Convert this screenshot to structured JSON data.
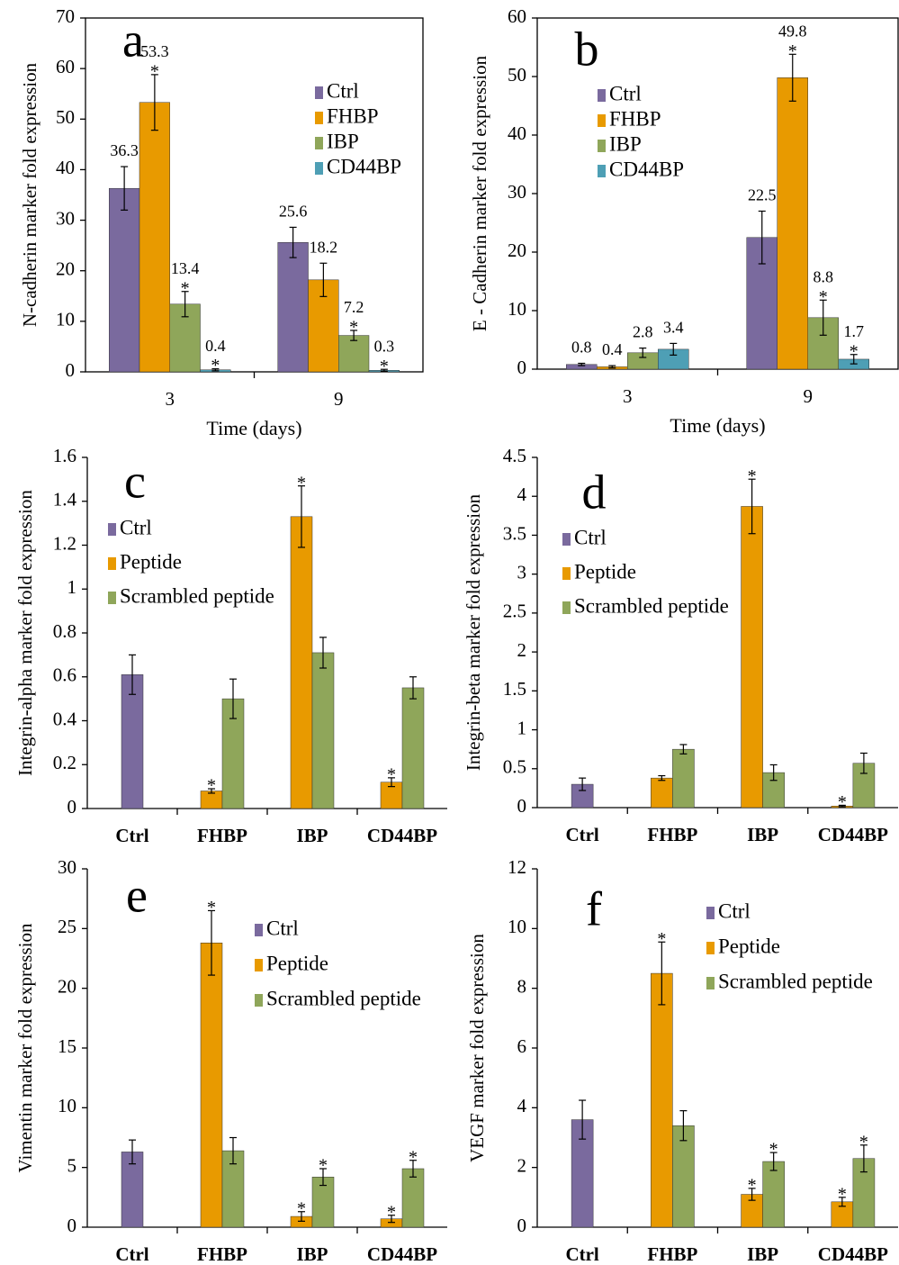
{
  "chart_data": [
    {
      "type": "bar",
      "label": "a",
      "y_label": "N-cadherin marker fold expression",
      "x_label": "Time (days)",
      "categories": [
        "3",
        "9"
      ],
      "ylim": [
        0,
        70
      ],
      "yticks": [
        0,
        10,
        20,
        30,
        40,
        50,
        60,
        70
      ],
      "frame": true,
      "show_value_labels": true,
      "legend": "upper right",
      "series": [
        {
          "name": "Ctrl",
          "color": "#7a6a9e",
          "values": [
            36.3,
            25.6
          ],
          "errors": [
            4.3,
            3
          ],
          "significance": [
            null,
            null
          ]
        },
        {
          "name": "FHBP",
          "color": "#e89a00",
          "values": [
            53.3,
            18.2
          ],
          "errors": [
            5.5,
            3.3
          ],
          "significance": [
            "*",
            null
          ]
        },
        {
          "name": "IBP",
          "color": "#8fa65a",
          "values": [
            13.4,
            7.2
          ],
          "errors": [
            2.5,
            1
          ],
          "significance": [
            "*",
            "*"
          ]
        },
        {
          "name": "CD44BP",
          "color": "#4e9fb5",
          "values": [
            0.4,
            0.3
          ],
          "errors": [
            0.2,
            0.2
          ],
          "significance": [
            "*",
            "*"
          ]
        }
      ]
    },
    {
      "type": "bar",
      "label": "b",
      "y_label": "E - Cadherin marker fold expression",
      "x_label": "Time (days)",
      "categories": [
        "3",
        "9"
      ],
      "ylim": [
        0,
        60
      ],
      "yticks": [
        0,
        10,
        20,
        30,
        40,
        50,
        60
      ],
      "frame": true,
      "show_value_labels": true,
      "legend": "upper left",
      "series": [
        {
          "name": "Ctrl",
          "color": "#7a6a9e",
          "values": [
            0.8,
            22.5
          ],
          "errors": [
            0.2,
            4.5
          ],
          "significance": [
            null,
            null
          ]
        },
        {
          "name": "FHBP",
          "color": "#e89a00",
          "values": [
            0.4,
            49.8
          ],
          "errors": [
            0.2,
            4
          ],
          "significance": [
            null,
            "*"
          ]
        },
        {
          "name": "IBP",
          "color": "#8fa65a",
          "values": [
            2.8,
            8.8
          ],
          "errors": [
            0.8,
            3
          ],
          "significance": [
            null,
            "*"
          ]
        },
        {
          "name": "CD44BP",
          "color": "#4e9fb5",
          "values": [
            3.4,
            1.7
          ],
          "errors": [
            1,
            0.8
          ],
          "significance": [
            null,
            "*"
          ]
        }
      ]
    },
    {
      "type": "bar",
      "label": "c",
      "y_label": "Integrin-alpha marker fold expression",
      "categories": [
        "Ctrl",
        "FHBP",
        "IBP",
        "CD44BP"
      ],
      "ylim": [
        0,
        1.6
      ],
      "yticks": [
        0,
        0.2,
        0.4,
        0.6,
        0.8,
        1,
        1.2,
        1.4,
        1.6
      ],
      "frame": false,
      "show_value_labels": false,
      "legend": "upper left",
      "series": [
        {
          "name": "Ctrl",
          "color": "#7a6a9e",
          "values": [
            0.61,
            null,
            null,
            null
          ],
          "errors": [
            0.09,
            null,
            null,
            null
          ],
          "significance": [
            null,
            null,
            null,
            null
          ]
        },
        {
          "name": "Peptide",
          "color": "#e89a00",
          "values": [
            null,
            0.08,
            1.33,
            0.12
          ],
          "errors": [
            null,
            0.01,
            0.14,
            0.02
          ],
          "significance": [
            null,
            "*",
            "*",
            "*"
          ]
        },
        {
          "name": "Scrambled peptide",
          "color": "#8fa65a",
          "values": [
            null,
            0.5,
            0.71,
            0.55
          ],
          "errors": [
            null,
            0.09,
            0.07,
            0.05
          ],
          "significance": [
            null,
            null,
            null,
            null
          ]
        }
      ]
    },
    {
      "type": "bar",
      "label": "d",
      "y_label": "Integrin-beta marker fold expression",
      "categories": [
        "Ctrl",
        "FHBP",
        "IBP",
        "CD44BP"
      ],
      "ylim": [
        0,
        4.5
      ],
      "yticks": [
        0,
        0.5,
        1,
        1.5,
        2,
        2.5,
        3,
        3.5,
        4,
        4.5
      ],
      "frame": false,
      "show_value_labels": false,
      "legend": "upper left",
      "series": [
        {
          "name": "Ctrl",
          "color": "#7a6a9e",
          "values": [
            0.3,
            null,
            null,
            null
          ],
          "errors": [
            0.08,
            null,
            null,
            null
          ],
          "significance": [
            null,
            null,
            null,
            null
          ]
        },
        {
          "name": "Peptide",
          "color": "#e89a00",
          "values": [
            null,
            0.38,
            3.87,
            0.02
          ],
          "errors": [
            null,
            0.03,
            0.35,
            0.01
          ],
          "significance": [
            null,
            null,
            "*",
            "*"
          ]
        },
        {
          "name": "Scrambled peptide",
          "color": "#8fa65a",
          "values": [
            null,
            0.75,
            0.45,
            0.57
          ],
          "errors": [
            null,
            0.06,
            0.1,
            0.13
          ],
          "significance": [
            null,
            null,
            null,
            null
          ]
        }
      ]
    },
    {
      "type": "bar",
      "label": "e",
      "y_label": "Vimentin marker fold expression",
      "categories": [
        "Ctrl",
        "FHBP",
        "IBP",
        "CD44BP"
      ],
      "ylim": [
        0,
        30
      ],
      "yticks": [
        0,
        5,
        10,
        15,
        20,
        25,
        30
      ],
      "frame": false,
      "show_value_labels": false,
      "legend": "upper right",
      "series": [
        {
          "name": "Ctrl",
          "color": "#7a6a9e",
          "values": [
            6.3,
            null,
            null,
            null
          ],
          "errors": [
            1,
            null,
            null,
            null
          ],
          "significance": [
            null,
            null,
            null,
            null
          ]
        },
        {
          "name": "Peptide",
          "color": "#e89a00",
          "values": [
            null,
            23.8,
            0.9,
            0.7
          ],
          "errors": [
            null,
            2.7,
            0.4,
            0.3
          ],
          "significance": [
            null,
            "*",
            "*",
            "*"
          ]
        },
        {
          "name": "Scrambled peptide",
          "color": "#8fa65a",
          "values": [
            null,
            6.4,
            4.2,
            4.9
          ],
          "errors": [
            null,
            1.1,
            0.7,
            0.7
          ],
          "significance": [
            null,
            null,
            "*",
            "*"
          ]
        }
      ]
    },
    {
      "type": "bar",
      "label": "f",
      "y_label": "VEGF marker fold expression",
      "categories": [
        "Ctrl",
        "FHBP",
        "IBP",
        "CD44BP"
      ],
      "ylim": [
        0,
        12
      ],
      "yticks": [
        0,
        2,
        4,
        6,
        8,
        10,
        12
      ],
      "frame": false,
      "show_value_labels": false,
      "legend": "upper right",
      "series": [
        {
          "name": "Ctrl",
          "color": "#7a6a9e",
          "values": [
            3.6,
            null,
            null,
            null
          ],
          "errors": [
            0.65,
            null,
            null,
            null
          ],
          "significance": [
            null,
            null,
            null,
            null
          ]
        },
        {
          "name": "Peptide",
          "color": "#e89a00",
          "values": [
            null,
            8.5,
            1.1,
            0.85
          ],
          "errors": [
            null,
            1.05,
            0.2,
            0.15
          ],
          "significance": [
            null,
            "*",
            "*",
            "*"
          ]
        },
        {
          "name": "Scrambled peptide",
          "color": "#8fa65a",
          "values": [
            null,
            3.4,
            2.2,
            2.3
          ],
          "errors": [
            null,
            0.5,
            0.3,
            0.45
          ],
          "significance": [
            null,
            null,
            "*",
            "*"
          ]
        }
      ]
    }
  ]
}
